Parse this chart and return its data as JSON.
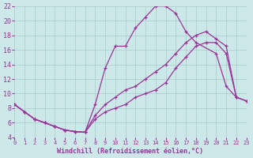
{
  "background_color": "#cce8e8",
  "grid_color": "#aacccc",
  "line_color": "#993399",
  "xlabel": "Windchill (Refroidissement éolien,°C)",
  "xlim": [
    0,
    23
  ],
  "ylim": [
    4,
    22
  ],
  "xticks": [
    0,
    1,
    2,
    3,
    4,
    5,
    6,
    7,
    8,
    9,
    10,
    11,
    12,
    13,
    14,
    15,
    16,
    17,
    18,
    19,
    20,
    21,
    22,
    23
  ],
  "yticks": [
    4,
    6,
    8,
    10,
    12,
    14,
    16,
    18,
    20,
    22
  ],
  "curve1_x": [
    0,
    1,
    2,
    3,
    4,
    5,
    6,
    7,
    8,
    9,
    10,
    11,
    12,
    13,
    14,
    15,
    16,
    17,
    18,
    20,
    21,
    22
  ],
  "curve1_y": [
    8.5,
    7.5,
    6.5,
    6.0,
    5.5,
    5.0,
    4.8,
    4.7,
    8.5,
    13.5,
    16.5,
    16.5,
    19.0,
    20.5,
    22.0,
    22.0,
    21.0,
    18.5,
    17.0,
    15.5,
    11.0,
    9.5
  ],
  "curve2_x": [
    0,
    1,
    2,
    3,
    4,
    5,
    6,
    7,
    8,
    9,
    10,
    11,
    12,
    13,
    14,
    15,
    16,
    17,
    18,
    19,
    20,
    21,
    22,
    23
  ],
  "curve2_y": [
    8.5,
    7.5,
    6.5,
    6.0,
    5.5,
    5.0,
    4.8,
    4.7,
    7.0,
    8.5,
    9.5,
    10.5,
    11.0,
    12.0,
    13.0,
    14.0,
    15.5,
    17.0,
    18.0,
    18.5,
    17.5,
    16.5,
    9.5,
    9.0
  ],
  "curve3_x": [
    0,
    1,
    2,
    3,
    4,
    5,
    6,
    7,
    8,
    9,
    10,
    11,
    12,
    13,
    14,
    15,
    16,
    17,
    18,
    19,
    20,
    21,
    22,
    23
  ],
  "curve3_y": [
    8.5,
    7.5,
    6.5,
    6.0,
    5.5,
    5.0,
    4.8,
    4.7,
    6.5,
    7.5,
    8.0,
    8.5,
    9.5,
    10.0,
    10.5,
    11.5,
    13.5,
    15.0,
    16.5,
    17.0,
    17.0,
    15.5,
    9.5,
    9.0
  ]
}
